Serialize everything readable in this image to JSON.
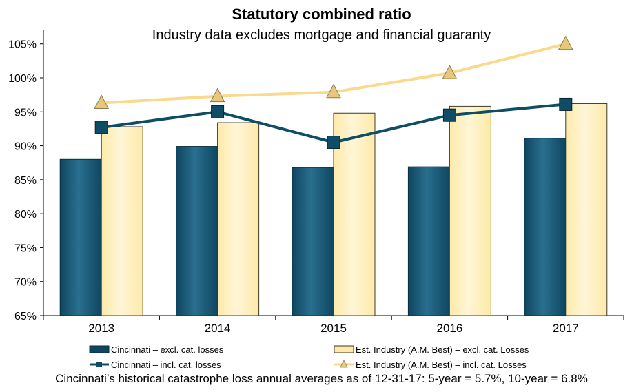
{
  "colors": {
    "cin_bar": "#0e4660",
    "cin_bar_light": "#2a6f8f",
    "ind_bar": "#fde9a9",
    "ind_bar_light": "#fff6d6",
    "cin_line": "#0f4d66",
    "ind_line": "#fad98c",
    "ind_marker": "#e7c77a"
  },
  "chart_data": {
    "type": "bar",
    "title": "Statutory combined ratio",
    "subtitle": "Industry data excludes mortgage and financial guaranty",
    "categories": [
      "2013",
      "2014",
      "2015",
      "2016",
      "2017"
    ],
    "ylim": [
      65,
      107
    ],
    "yticks": [
      "65%",
      "70%",
      "75%",
      "80%",
      "85%",
      "90%",
      "95%",
      "100%",
      "105%"
    ],
    "ytick_values": [
      65,
      70,
      75,
      80,
      85,
      90,
      95,
      100,
      105
    ],
    "grid": false,
    "legend_position": "bottom",
    "series": [
      {
        "name": "Cincinnati – excl. cat. losses",
        "kind": "bar",
        "values": [
          88.0,
          89.9,
          86.8,
          86.9,
          91.1
        ]
      },
      {
        "name": "Est. Industry (A.M. Best) – excl. cat. Losses",
        "kind": "bar",
        "values": [
          92.8,
          93.4,
          94.8,
          95.8,
          96.2
        ]
      },
      {
        "name": "Cincinnati – incl. cat. losses",
        "kind": "line",
        "marker": "square",
        "values": [
          92.7,
          95.0,
          90.5,
          94.5,
          96.1
        ]
      },
      {
        "name": "Est. Industry (A.M. Best) – incl. cat. Losses",
        "kind": "line",
        "marker": "triangle",
        "values": [
          96.3,
          97.3,
          97.9,
          100.7,
          105.0
        ]
      }
    ]
  },
  "footnote": "Cincinnati’s historical catastrophe loss annual averages as of 12-31-17: 5-year = 5.7%, 10-year = 6.8%"
}
